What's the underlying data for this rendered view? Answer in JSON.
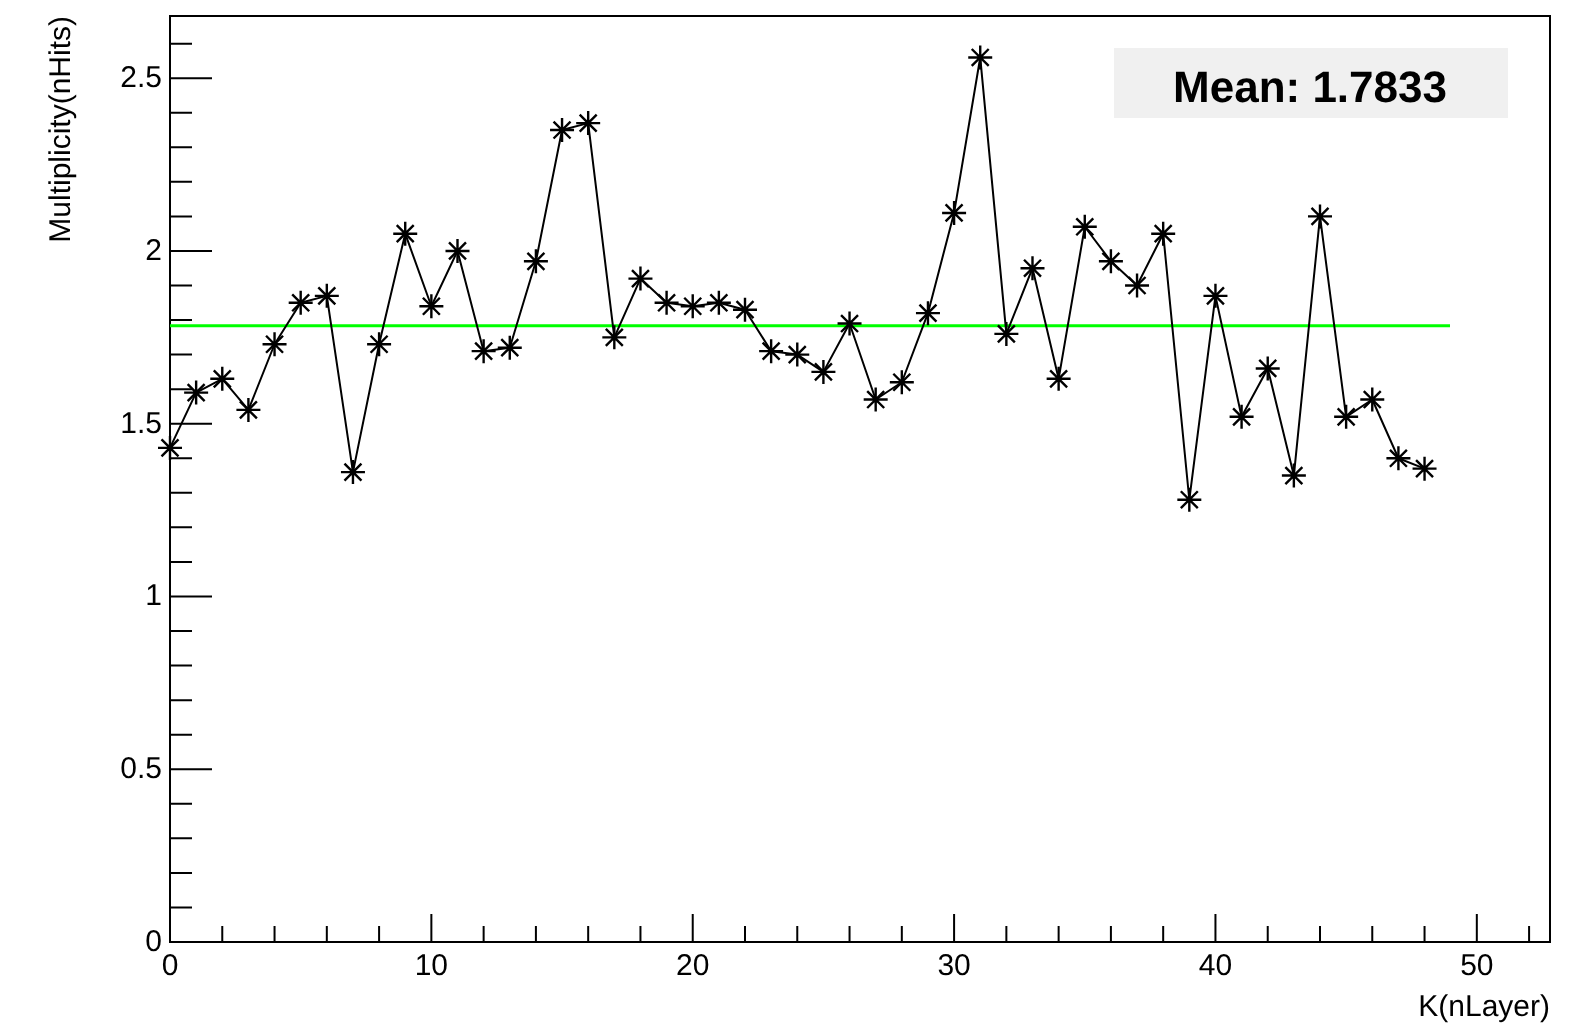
{
  "chart_data": {
    "type": "line",
    "xlabel": "K(nLayer)",
    "ylabel": "Multiplicity(nHits)",
    "x": [
      0,
      1,
      2,
      3,
      4,
      5,
      6,
      7,
      8,
      9,
      10,
      11,
      12,
      13,
      14,
      15,
      16,
      17,
      18,
      19,
      20,
      21,
      22,
      23,
      24,
      25,
      26,
      27,
      28,
      29,
      30,
      31,
      32,
      33,
      34,
      35,
      36,
      37,
      38,
      39,
      40,
      41,
      42,
      43,
      44,
      45,
      46,
      47,
      48
    ],
    "series": [
      {
        "color": "#000000",
        "values": [
          1.43,
          1.59,
          1.63,
          1.54,
          1.73,
          1.85,
          1.87,
          1.36,
          1.73,
          2.05,
          1.84,
          2.0,
          1.71,
          1.72,
          1.97,
          2.35,
          2.37,
          1.75,
          1.92,
          1.85,
          1.84,
          1.85,
          1.83,
          1.71,
          1.7,
          1.65,
          1.79,
          1.57,
          1.62,
          1.82,
          2.11,
          2.56,
          1.76,
          1.95,
          1.63,
          2.07,
          1.97,
          1.9,
          2.05,
          1.28,
          1.87,
          1.52,
          1.66,
          1.35,
          2.1,
          1.52,
          1.57,
          1.4,
          1.37
        ]
      }
    ],
    "marker": "cross",
    "line_style": "solid",
    "grid": false,
    "xlim": [
      0,
      52.8
    ],
    "ylim": [
      0,
      2.68
    ],
    "xticks": [
      0,
      {
        "value": 2,
        "label": null
      },
      {
        "value": 4,
        "label": null
      },
      {
        "value": 6,
        "label": null
      },
      {
        "value": 8,
        "label": null
      },
      10,
      {
        "value": 12,
        "label": null
      },
      {
        "value": 14,
        "label": null
      },
      {
        "value": 16,
        "label": null
      },
      {
        "value": 18,
        "label": null
      },
      20,
      {
        "value": 22,
        "label": null
      },
      {
        "value": 24,
        "label": null
      },
      {
        "value": 26,
        "label": null
      },
      {
        "value": 28,
        "label": null
      },
      30,
      {
        "value": 32,
        "label": null
      },
      {
        "value": 34,
        "label": null
      },
      {
        "value": 36,
        "label": null
      },
      {
        "value": 38,
        "label": null
      },
      40,
      {
        "value": 42,
        "label": null
      },
      {
        "value": 44,
        "label": null
      },
      {
        "value": 46,
        "label": null
      },
      {
        "value": 48,
        "label": null
      },
      50,
      {
        "value": 52,
        "label": null
      }
    ],
    "yticks": [
      0,
      {
        "value": 0.1,
        "label": null
      },
      {
        "value": 0.2,
        "label": null
      },
      {
        "value": 0.3,
        "label": null
      },
      {
        "value": 0.4,
        "label": null
      },
      0.5,
      {
        "value": 0.6,
        "label": null
      },
      {
        "value": 0.7,
        "label": null
      },
      {
        "value": 0.8,
        "label": null
      },
      {
        "value": 0.9,
        "label": null
      },
      1,
      {
        "value": 1.1,
        "label": null
      },
      {
        "value": 1.2,
        "label": null
      },
      {
        "value": 1.3,
        "label": null
      },
      {
        "value": 1.4,
        "label": null
      },
      1.5,
      {
        "value": 1.6,
        "label": null
      },
      {
        "value": 1.7,
        "label": null
      },
      {
        "value": 1.8,
        "label": null
      },
      {
        "value": 1.9,
        "label": null
      },
      2,
      {
        "value": 2.1,
        "label": null
      },
      {
        "value": 2.2,
        "label": null
      },
      {
        "value": 2.3,
        "label": null
      },
      {
        "value": 2.4,
        "label": null
      },
      2.5,
      {
        "value": 2.6,
        "label": null
      }
    ],
    "ref_lines": [
      {
        "axis": "y",
        "value": 1.7833,
        "color": "#00ff00"
      }
    ],
    "annotations": [
      "Mean: 1.7833"
    ]
  }
}
